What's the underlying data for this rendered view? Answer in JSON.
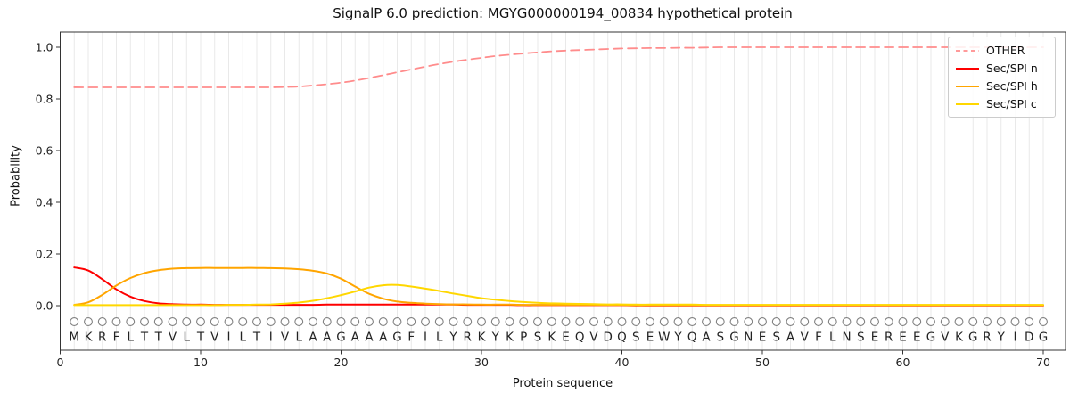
{
  "chart_data": {
    "type": "line",
    "title": "SignalP 6.0 prediction: MGYG000000194_00834 hypothetical protein",
    "xlabel": "Protein sequence",
    "ylabel": "Probability",
    "xlim": [
      0,
      71.6
    ],
    "ylim": [
      -0.17,
      1.06
    ],
    "xticks": [
      0,
      10,
      20,
      30,
      40,
      50,
      60,
      70
    ],
    "yticks": [
      0.0,
      0.2,
      0.4,
      0.6,
      0.8,
      1.0
    ],
    "grid": "vertical line at every residue position, light gray; no horizontal grid",
    "legend_position": "upper right",
    "x_axis_note": "x values are residue positions 1-70 of the sequence below",
    "sequence": "MKRFLTTVLTVILTIVLAAGAAAGFILYRKYKPSKEQVDQSEWYQASGNESAVFLNSEREEGVKGRYIDG",
    "series": [
      {
        "name": "OTHER",
        "color": "#ff8c8c",
        "style": "dashed",
        "values": [
          0.845,
          0.845,
          0.845,
          0.845,
          0.845,
          0.845,
          0.845,
          0.845,
          0.845,
          0.845,
          0.845,
          0.845,
          0.845,
          0.845,
          0.845,
          0.846,
          0.848,
          0.852,
          0.857,
          0.863,
          0.871,
          0.881,
          0.892,
          0.903,
          0.914,
          0.925,
          0.935,
          0.944,
          0.952,
          0.959,
          0.966,
          0.971,
          0.976,
          0.98,
          0.984,
          0.987,
          0.989,
          0.991,
          0.993,
          0.995,
          0.996,
          0.997,
          0.997,
          0.998,
          0.998,
          0.999,
          1.0,
          1.0,
          1.0,
          1.0,
          1.0,
          1.0,
          1.0,
          1.0,
          1.0,
          1.0,
          1.0,
          1.0,
          1.0,
          1.0,
          1.0,
          1.0,
          1.0,
          1.0,
          1.0,
          1.0,
          1.0,
          1.0,
          1.0,
          1.0
        ]
      },
      {
        "name": "Sec/SPI n",
        "color": "#fe0000",
        "style": "solid",
        "values": [
          0.148,
          0.136,
          0.102,
          0.063,
          0.035,
          0.018,
          0.009,
          0.006,
          0.004,
          0.004,
          0.003,
          0.003,
          0.003,
          0.003,
          0.003,
          0.003,
          0.003,
          0.003,
          0.004,
          0.004,
          0.004,
          0.004,
          0.004,
          0.004,
          0.004,
          0.004,
          0.004,
          0.004,
          0.003,
          0.003,
          0.003,
          0.003,
          0.002,
          0.002,
          0.002,
          0.002,
          0.002,
          0.002,
          0.002,
          0.002,
          0.001,
          0.001,
          0.001,
          0.001,
          0.001,
          0.001,
          0.001,
          0.001,
          0.001,
          0.001,
          0.001,
          0.001,
          0.001,
          0.001,
          0.001,
          0.001,
          0.001,
          0.001,
          0.001,
          0.001,
          0.001,
          0.001,
          0.001,
          0.001,
          0.001,
          0.001,
          0.001,
          0.001,
          0.001,
          0.001
        ]
      },
      {
        "name": "Sec/SPI h",
        "color": "#ffa500",
        "style": "solid",
        "values": [
          0.003,
          0.013,
          0.042,
          0.078,
          0.107,
          0.126,
          0.137,
          0.143,
          0.145,
          0.146,
          0.146,
          0.146,
          0.146,
          0.146,
          0.145,
          0.144,
          0.141,
          0.135,
          0.124,
          0.104,
          0.074,
          0.046,
          0.027,
          0.016,
          0.011,
          0.008,
          0.006,
          0.005,
          0.005,
          0.004,
          0.004,
          0.004,
          0.003,
          0.003,
          0.003,
          0.003,
          0.003,
          0.003,
          0.003,
          0.003,
          0.002,
          0.002,
          0.002,
          0.002,
          0.002,
          0.002,
          0.002,
          0.002,
          0.002,
          0.002,
          0.002,
          0.002,
          0.002,
          0.002,
          0.002,
          0.002,
          0.002,
          0.002,
          0.002,
          0.002,
          0.002,
          0.002,
          0.002,
          0.002,
          0.002,
          0.002,
          0.002,
          0.002,
          0.002,
          0.002
        ]
      },
      {
        "name": "Sec/SPI c",
        "color": "#ffd700",
        "style": "solid",
        "values": [
          0.002,
          0.002,
          0.002,
          0.002,
          0.002,
          0.002,
          0.002,
          0.002,
          0.002,
          0.002,
          0.002,
          0.003,
          0.003,
          0.004,
          0.005,
          0.008,
          0.012,
          0.019,
          0.029,
          0.041,
          0.055,
          0.07,
          0.079,
          0.08,
          0.074,
          0.066,
          0.057,
          0.047,
          0.038,
          0.029,
          0.023,
          0.018,
          0.014,
          0.011,
          0.009,
          0.008,
          0.007,
          0.006,
          0.005,
          0.005,
          0.004,
          0.004,
          0.004,
          0.004,
          0.004,
          0.003,
          0.003,
          0.003,
          0.003,
          0.003,
          0.003,
          0.003,
          0.003,
          0.003,
          0.003,
          0.003,
          0.003,
          0.003,
          0.003,
          0.003,
          0.003,
          0.003,
          0.003,
          0.003,
          0.003,
          0.003,
          0.003,
          0.003,
          0.003,
          0.003
        ]
      }
    ]
  },
  "legend": {
    "entries": [
      {
        "label": "OTHER"
      },
      {
        "label": "Sec/SPI n"
      },
      {
        "label": "Sec/SPI h"
      },
      {
        "label": "Sec/SPI c"
      }
    ]
  },
  "style_colors": {
    "grid": "#e9e9e9",
    "spine": "#333333",
    "tick_text": "#222222",
    "residue_marker": "#7f7f7f",
    "residue_letter": "#222222"
  }
}
